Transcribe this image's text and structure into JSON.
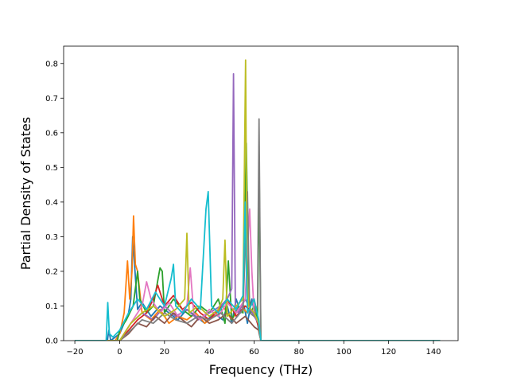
{
  "chart_data": {
    "type": "line",
    "title": "",
    "xlabel": "Frequency (THz)",
    "ylabel": "Partial Density of States",
    "xlim": [
      -25,
      151
    ],
    "ylim": [
      0,
      0.85
    ],
    "xticks": [
      -20,
      0,
      20,
      40,
      60,
      80,
      100,
      120,
      140
    ],
    "yticks": [
      0.0,
      0.1,
      0.2,
      0.3,
      0.4,
      0.5,
      0.6,
      0.7,
      0.8
    ],
    "grid": false,
    "legend": "none",
    "colors": [
      "#1f77b4",
      "#ff7f0e",
      "#2ca02c",
      "#d62728",
      "#9467bd",
      "#8c564b",
      "#e377c2",
      "#7f7f7f",
      "#bcbd22",
      "#17becf"
    ],
    "series": [
      {
        "x": [
          -20,
          -5.5,
          -4.8,
          -4,
          0,
          2,
          4,
          5,
          5.8,
          8,
          10,
          14,
          18,
          22,
          26,
          30,
          34,
          38,
          42,
          46,
          48,
          50,
          52,
          54,
          55.5,
          57,
          59,
          60.5,
          61.5,
          62.3,
          63,
          70,
          143
        ],
        "y": [
          0,
          0,
          0.03,
          0,
          0.02,
          0.05,
          0.08,
          0.12,
          0.3,
          0.09,
          0.11,
          0.07,
          0.1,
          0.08,
          0.06,
          0.09,
          0.07,
          0.05,
          0.08,
          0.06,
          0.1,
          0.05,
          0.12,
          0.08,
          0.1,
          0.05,
          0.12,
          0.07,
          0.05,
          0.02,
          0,
          0,
          0
        ]
      },
      {
        "x": [
          -20,
          -2,
          0,
          2,
          3.5,
          4.5,
          5.5,
          6.2,
          7,
          8,
          10,
          14,
          18,
          22,
          26,
          30,
          34,
          38,
          42,
          46,
          50,
          54,
          57,
          60,
          62,
          62.5,
          63,
          143
        ],
        "y": [
          0,
          0,
          0.02,
          0.08,
          0.23,
          0.12,
          0.2,
          0.36,
          0.22,
          0.2,
          0.08,
          0.06,
          0.09,
          0.05,
          0.07,
          0.06,
          0.08,
          0.05,
          0.07,
          0.1,
          0.06,
          0.1,
          0.08,
          0.12,
          0.06,
          0.02,
          0,
          0
        ]
      },
      {
        "x": [
          -20,
          -1,
          0,
          3,
          6,
          8,
          9,
          12,
          15,
          18,
          19,
          20,
          24,
          28,
          32,
          36,
          40,
          44,
          47,
          48.5,
          50,
          53,
          55,
          56.5,
          57.5,
          58.5,
          60,
          61.5,
          62.3,
          63,
          143
        ],
        "y": [
          0,
          0,
          0.03,
          0.06,
          0.1,
          0.2,
          0.12,
          0.08,
          0.1,
          0.21,
          0.2,
          0.08,
          0.12,
          0.09,
          0.07,
          0.1,
          0.08,
          0.12,
          0.05,
          0.23,
          0.06,
          0.1,
          0.08,
          0.57,
          0.15,
          0.08,
          0.1,
          0.06,
          0.47,
          0,
          0
        ]
      },
      {
        "x": [
          -20,
          0,
          4,
          8,
          12,
          15,
          17,
          20,
          24,
          28,
          32,
          36,
          40,
          44,
          48,
          52,
          56,
          60,
          62,
          63,
          143
        ],
        "y": [
          0,
          0,
          0.03,
          0.06,
          0.08,
          0.12,
          0.16,
          0.1,
          0.13,
          0.09,
          0.11,
          0.08,
          0.06,
          0.09,
          0.12,
          0.07,
          0.1,
          0.08,
          0.04,
          0,
          0
        ]
      },
      {
        "x": [
          -20,
          0,
          5,
          10,
          15,
          20,
          25,
          30,
          35,
          40,
          45,
          48,
          50,
          50.8,
          51.6,
          53,
          56,
          60,
          62,
          63,
          143
        ],
        "y": [
          0,
          0,
          0.05,
          0.08,
          0.06,
          0.1,
          0.07,
          0.09,
          0.06,
          0.08,
          0.1,
          0.12,
          0.15,
          0.77,
          0.1,
          0.08,
          0.12,
          0.07,
          0.05,
          0,
          0
        ]
      },
      {
        "x": [
          -20,
          0,
          4,
          8,
          12,
          16,
          20,
          24,
          28,
          32,
          36,
          40,
          44,
          48,
          52,
          56,
          60,
          62,
          63,
          143
        ],
        "y": [
          0,
          0,
          0.02,
          0.05,
          0.04,
          0.07,
          0.05,
          0.08,
          0.06,
          0.04,
          0.07,
          0.05,
          0.06,
          0.08,
          0.05,
          0.07,
          0.04,
          0.03,
          0,
          0
        ]
      },
      {
        "x": [
          -20,
          0,
          5,
          10,
          12,
          14,
          18,
          22,
          26,
          30,
          31.5,
          33,
          36,
          40,
          44,
          48,
          52,
          56,
          58,
          59,
          60,
          62,
          63,
          143
        ],
        "y": [
          0,
          0,
          0.05,
          0.1,
          0.17,
          0.12,
          0.08,
          0.11,
          0.07,
          0.1,
          0.21,
          0.08,
          0.06,
          0.09,
          0.07,
          0.11,
          0.08,
          0.12,
          0.38,
          0.2,
          0.08,
          0.05,
          0,
          0
        ]
      },
      {
        "x": [
          -20,
          0,
          5,
          10,
          15,
          20,
          25,
          30,
          35,
          40,
          45,
          50,
          55,
          57,
          58,
          60,
          61.5,
          62.2,
          63,
          143
        ],
        "y": [
          0,
          0,
          0.03,
          0.06,
          0.05,
          0.08,
          0.06,
          0.05,
          0.07,
          0.06,
          0.08,
          0.05,
          0.09,
          0.43,
          0.08,
          0.07,
          0.1,
          0.64,
          0,
          0
        ]
      },
      {
        "x": [
          -20,
          0,
          5,
          10,
          15,
          20,
          25,
          29,
          30,
          31,
          35,
          40,
          44,
          46,
          47,
          48,
          52,
          55,
          56.2,
          56.8,
          57.5,
          60,
          62,
          63,
          143
        ],
        "y": [
          0,
          0,
          0.05,
          0.08,
          0.1,
          0.07,
          0.09,
          0.12,
          0.31,
          0.08,
          0.1,
          0.07,
          0.09,
          0.12,
          0.29,
          0.07,
          0.1,
          0.12,
          0.81,
          0.2,
          0.1,
          0.08,
          0.05,
          0,
          0
        ]
      },
      {
        "x": [
          -20,
          -6,
          -5.3,
          -4.6,
          -3,
          0,
          4,
          8,
          12,
          16,
          20,
          23,
          24,
          25,
          28,
          32,
          36,
          38.5,
          39.5,
          41,
          44,
          48,
          52,
          55,
          56,
          57,
          60,
          62,
          63,
          143
        ],
        "y": [
          0,
          0,
          0.11,
          0.02,
          0.01,
          0.03,
          0.08,
          0.12,
          0.09,
          0.14,
          0.1,
          0.18,
          0.22,
          0.1,
          0.08,
          0.12,
          0.09,
          0.38,
          0.43,
          0.1,
          0.08,
          0.12,
          0.09,
          0.13,
          0.4,
          0.08,
          0.12,
          0.06,
          0,
          0
        ]
      }
    ]
  }
}
